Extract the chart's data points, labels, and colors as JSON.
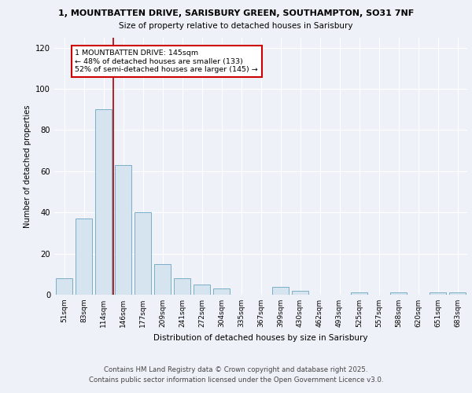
{
  "title1": "1, MOUNTBATTEN DRIVE, SARISBURY GREEN, SOUTHAMPTON, SO31 7NF",
  "title2": "Size of property relative to detached houses in Sarisbury",
  "xlabel": "Distribution of detached houses by size in Sarisbury",
  "ylabel": "Number of detached properties",
  "categories": [
    "51sqm",
    "83sqm",
    "114sqm",
    "146sqm",
    "177sqm",
    "209sqm",
    "241sqm",
    "272sqm",
    "304sqm",
    "335sqm",
    "367sqm",
    "399sqm",
    "430sqm",
    "462sqm",
    "493sqm",
    "525sqm",
    "557sqm",
    "588sqm",
    "620sqm",
    "651sqm",
    "683sqm"
  ],
  "values": [
    8,
    37,
    90,
    63,
    40,
    15,
    8,
    5,
    3,
    0,
    0,
    4,
    2,
    0,
    0,
    1,
    0,
    1,
    0,
    1,
    1
  ],
  "bar_color": "#d6e4f0",
  "bar_edge_color": "#7aaec8",
  "vline_x_index": 2,
  "vline_color": "#aa0000",
  "annotation_line1": "1 MOUNTBATTEN DRIVE: 145sqm",
  "annotation_line2": "← 48% of detached houses are smaller (133)",
  "annotation_line3": "52% of semi-detached houses are larger (145) →",
  "annotation_box_color": "#ffffff",
  "annotation_box_edge": "#cc0000",
  "ylim": [
    0,
    125
  ],
  "yticks": [
    0,
    20,
    40,
    60,
    80,
    100,
    120
  ],
  "background_color": "#eef2f8",
  "grid_color": "#ffffff",
  "footer_line1": "Contains HM Land Registry data © Crown copyright and database right 2025.",
  "footer_line2": "Contains public sector information licensed under the Open Government Licence v3.0."
}
